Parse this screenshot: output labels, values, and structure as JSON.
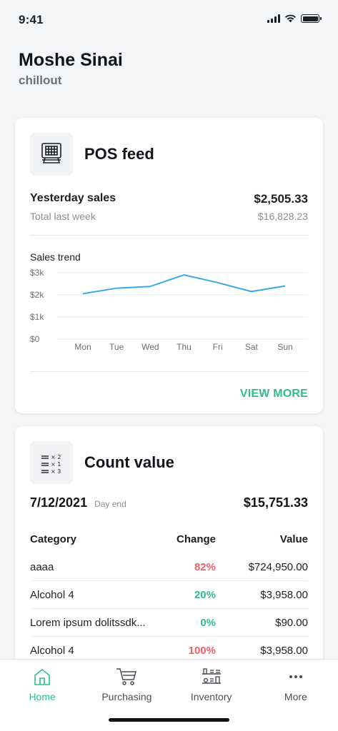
{
  "status": {
    "time": "9:41"
  },
  "header": {
    "user_name": "Moshe Sinai",
    "store_name": "chillout"
  },
  "pos_feed": {
    "title": "POS feed",
    "icon": "pos-terminal-icon",
    "yesterday_label": "Yesterday sales",
    "yesterday_value": "$2,505.33",
    "last_week_label": "Total last week",
    "last_week_value": "$16,828.23",
    "chart_label": "Sales trend",
    "view_more": "VIEW MORE"
  },
  "chart_data": {
    "type": "line",
    "title": "Sales trend",
    "categories": [
      "Mon",
      "Tue",
      "Wed",
      "Thu",
      "Fri",
      "Sat",
      "Sun"
    ],
    "values": [
      2050,
      2300,
      2380,
      2900,
      2550,
      2150,
      2400
    ],
    "y_ticks": [
      "$3k",
      "$2k",
      "$1k",
      "$0"
    ],
    "ylim": [
      0,
      3000
    ],
    "grid": true,
    "line_color": "#3aa7ec"
  },
  "count_value": {
    "title": "Count value",
    "icon": "count-list-icon",
    "date": "7/12/2021",
    "date_sub": "Day end",
    "total": "$15,751.33",
    "columns": [
      "Category",
      "Change",
      "Value"
    ],
    "rows": [
      {
        "category": "aaaa",
        "change": "82%",
        "value": "$724,950.00",
        "trend": "neg"
      },
      {
        "category": "Alcohol 4",
        "change": "20%",
        "value": "$3,958.00",
        "trend": "pos"
      },
      {
        "category": "Lorem ipsum dolitssdk...",
        "change": "0%",
        "value": "$90.00",
        "trend": "pos"
      },
      {
        "category": "Alcohol 4",
        "change": "100%",
        "value": "$3,958.00",
        "trend": "neg"
      }
    ]
  },
  "tabs": [
    {
      "label": "Home",
      "icon": "home-icon",
      "active": true
    },
    {
      "label": "Purchasing",
      "icon": "cart-icon",
      "active": false
    },
    {
      "label": "Inventory",
      "icon": "inventory-icon",
      "active": false
    },
    {
      "label": "More",
      "icon": "more-dots-icon",
      "active": false
    }
  ],
  "colors": {
    "accent": "#2fbe85",
    "negative": "#ef6066",
    "chart_line": "#3aa7ec"
  }
}
